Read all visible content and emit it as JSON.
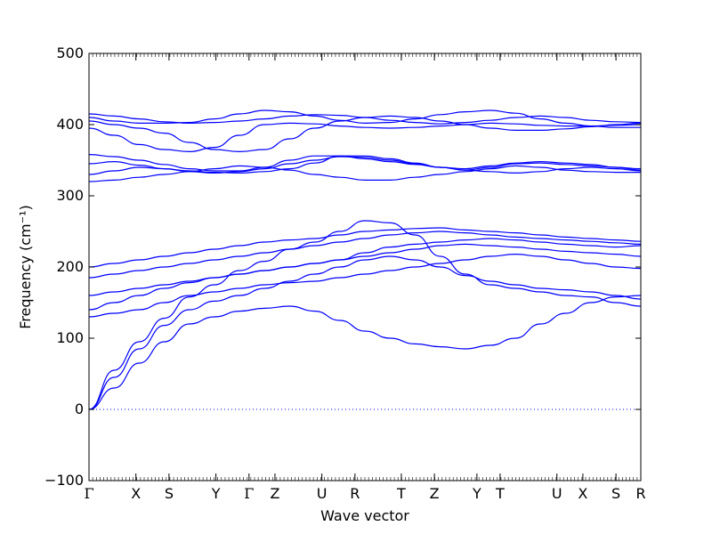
{
  "chart_data": {
    "type": "line",
    "title": "",
    "xlabel": "Wave vector",
    "ylabel": "Frequency",
    "ylabel_unit": "(cm⁻¹)",
    "ylim": [
      -100,
      500
    ],
    "yticks": [
      -100,
      0,
      100,
      200,
      300,
      400,
      500
    ],
    "x_range": [
      0,
      1
    ],
    "grid": false,
    "legend": "none",
    "line_color": "#0000ff",
    "zero_line_color": "#0000ff",
    "high_symmetry_points": [
      {
        "label": "Γ",
        "x": 0.0
      },
      {
        "label": "X",
        "x": 0.085
      },
      {
        "label": "S",
        "x": 0.145
      },
      {
        "label": "Y",
        "x": 0.23
      },
      {
        "label": "Γ",
        "x": 0.29
      },
      {
        "label": "Z",
        "x": 0.337
      },
      {
        "label": "U",
        "x": 0.422
      },
      {
        "label": "R",
        "x": 0.482
      },
      {
        "label": "T",
        "x": 0.566
      },
      {
        "label": "Z",
        "x": 0.626
      },
      {
        "label": "Y",
        "x": 0.703
      },
      {
        "label": "T",
        "x": 0.745
      },
      {
        "label": "U",
        "x": 0.848
      },
      {
        "label": "X",
        "x": 0.895
      },
      {
        "label": "S",
        "x": 0.955
      },
      {
        "label": "R",
        "x": 1.0
      }
    ],
    "series": [
      {
        "values": [
          0,
          55,
          95,
          128,
          158,
          175,
          195,
          208,
          225,
          235,
          250,
          265,
          262,
          245,
          215,
          190,
          175,
          170,
          165,
          160,
          158,
          150,
          145
        ]
      },
      {
        "values": [
          0,
          45,
          85,
          118,
          140,
          152,
          160,
          170,
          180,
          190,
          200,
          210,
          215,
          210,
          200,
          188,
          180,
          175,
          170,
          168,
          165,
          160,
          155
        ]
      },
      {
        "values": [
          0,
          30,
          65,
          95,
          120,
          130,
          138,
          142,
          145,
          138,
          125,
          110,
          100,
          92,
          88,
          85,
          90,
          100,
          120,
          135,
          150,
          158,
          160
        ]
      },
      {
        "values": [
          130,
          135,
          140,
          150,
          160,
          165,
          170,
          175,
          178,
          180,
          185,
          190,
          195,
          200,
          205,
          210,
          215,
          218,
          215,
          210,
          205,
          200,
          198
        ]
      },
      {
        "values": [
          140,
          150,
          160,
          170,
          178,
          185,
          190,
          195,
          200,
          205,
          210,
          215,
          220,
          225,
          230,
          232,
          230,
          228,
          225,
          222,
          220,
          218,
          215
        ]
      },
      {
        "values": [
          160,
          165,
          170,
          175,
          180,
          185,
          190,
          195,
          200,
          205,
          210,
          220,
          228,
          232,
          235,
          238,
          240,
          238,
          235,
          232,
          230,
          228,
          230
        ]
      },
      {
        "values": [
          185,
          190,
          195,
          200,
          205,
          210,
          215,
          220,
          225,
          230,
          235,
          240,
          245,
          248,
          250,
          248,
          245,
          242,
          240,
          238,
          236,
          234,
          232
        ]
      },
      {
        "values": [
          200,
          205,
          210,
          215,
          220,
          225,
          230,
          235,
          238,
          240,
          245,
          250,
          252,
          254,
          255,
          252,
          250,
          248,
          245,
          242,
          240,
          238,
          236
        ]
      },
      {
        "values": [
          320,
          322,
          326,
          330,
          334,
          338,
          342,
          340,
          336,
          330,
          326,
          322,
          322,
          326,
          330,
          334,
          338,
          342,
          340,
          336,
          334,
          333,
          333
        ]
      },
      {
        "values": [
          330,
          335,
          340,
          338,
          334,
          332,
          334,
          338,
          345,
          350,
          355,
          354,
          350,
          345,
          340,
          336,
          334,
          332,
          334,
          338,
          340,
          338,
          335
        ]
      },
      {
        "values": [
          345,
          348,
          343,
          338,
          335,
          333,
          332,
          334,
          338,
          346,
          356,
          356,
          352,
          346,
          340,
          336,
          340,
          345,
          346,
          344,
          342,
          340,
          338
        ]
      },
      {
        "values": [
          358,
          355,
          350,
          344,
          338,
          335,
          335,
          340,
          350,
          356,
          356,
          352,
          348,
          344,
          340,
          338,
          342,
          346,
          348,
          346,
          344,
          340,
          336
        ]
      },
      {
        "values": [
          395,
          385,
          372,
          365,
          362,
          368,
          385,
          400,
          402,
          401,
          398,
          396,
          395,
          396,
          398,
          400,
          402,
          401,
          399,
          398,
          398,
          399,
          400
        ]
      },
      {
        "values": [
          405,
          400,
          395,
          388,
          375,
          365,
          362,
          365,
          380,
          395,
          405,
          410,
          412,
          410,
          405,
          400,
          395,
          392,
          392,
          394,
          397,
          400,
          402
        ]
      },
      {
        "values": [
          410,
          405,
          402,
          402,
          403,
          408,
          415,
          420,
          418,
          412,
          406,
          402,
          403,
          408,
          414,
          418,
          420,
          416,
          408,
          402,
          398,
          396,
          396
        ]
      },
      {
        "values": [
          415,
          412,
          408,
          404,
          402,
          403,
          405,
          408,
          412,
          414,
          413,
          410,
          406,
          403,
          401,
          403,
          406,
          410,
          412,
          410,
          406,
          404,
          403
        ]
      }
    ]
  }
}
